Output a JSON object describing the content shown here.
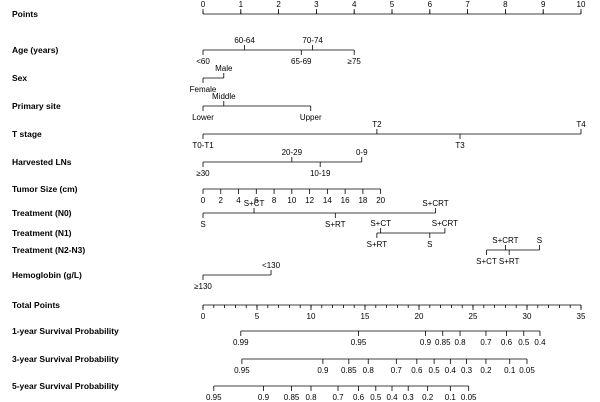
{
  "chart_data": {
    "type": "nomogram",
    "title": "",
    "rows": [
      {
        "label": "Points",
        "axis": {
          "min": 0,
          "max": 10
        },
        "ticks": [
          {
            "v": 0,
            "label": "0",
            "pos": "top"
          },
          {
            "v": 1,
            "label": "1",
            "pos": "top"
          },
          {
            "v": 2,
            "label": "2",
            "pos": "top"
          },
          {
            "v": 3,
            "label": "3",
            "pos": "top"
          },
          {
            "v": 4,
            "label": "4",
            "pos": "top"
          },
          {
            "v": 5,
            "label": "5",
            "pos": "top"
          },
          {
            "v": 6,
            "label": "6",
            "pos": "top"
          },
          {
            "v": 7,
            "label": "7",
            "pos": "top"
          },
          {
            "v": 8,
            "label": "8",
            "pos": "top"
          },
          {
            "v": 9,
            "label": "9",
            "pos": "top"
          },
          {
            "v": 10,
            "label": "10",
            "pos": "top"
          }
        ],
        "minor_ticks": 10
      },
      {
        "label": "Age (years)",
        "ticks": [
          {
            "v": 0,
            "label": "<60",
            "pos": "bottom"
          },
          {
            "v": 1.1,
            "label": "60-64",
            "pos": "top"
          },
          {
            "v": 2.6,
            "label": "65-69",
            "pos": "bottom"
          },
          {
            "v": 2.9,
            "label": "70-74",
            "pos": "top"
          },
          {
            "v": 4.0,
            "label": "≥75",
            "pos": "bottom"
          }
        ]
      },
      {
        "label": "Sex",
        "ticks": [
          {
            "v": 0,
            "label": "Female",
            "pos": "bottom"
          },
          {
            "v": 0.55,
            "label": "Male",
            "pos": "top"
          }
        ]
      },
      {
        "label": "Primary site",
        "ticks": [
          {
            "v": 0,
            "label": "Lower",
            "pos": "bottom"
          },
          {
            "v": 0.55,
            "label": "Middle",
            "pos": "top"
          },
          {
            "v": 2.85,
            "label": "Upper",
            "pos": "bottom"
          }
        ]
      },
      {
        "label": "T stage",
        "ticks": [
          {
            "v": 0,
            "label": "T0-T1",
            "pos": "bottom"
          },
          {
            "v": 4.6,
            "label": "T2",
            "pos": "top"
          },
          {
            "v": 6.8,
            "label": "T3",
            "pos": "bottom"
          },
          {
            "v": 10,
            "label": "T4",
            "pos": "top"
          }
        ]
      },
      {
        "label": "Harvested LNs",
        "ticks": [
          {
            "v": 0,
            "label": "≥30",
            "pos": "bottom"
          },
          {
            "v": 2.35,
            "label": "20-29",
            "pos": "top"
          },
          {
            "v": 3.1,
            "label": "10-19",
            "pos": "bottom"
          },
          {
            "v": 4.2,
            "label": "0-9",
            "pos": "top"
          }
        ]
      },
      {
        "label": "Tumor Size (cm)",
        "ticks": [
          {
            "v": 0,
            "label": "0",
            "pos": "bottom"
          },
          {
            "v": 0.47,
            "label": "2",
            "pos": "bottom"
          },
          {
            "v": 0.94,
            "label": "4",
            "pos": "bottom"
          },
          {
            "v": 1.41,
            "label": "6",
            "pos": "bottom"
          },
          {
            "v": 1.88,
            "label": "8",
            "pos": "bottom"
          },
          {
            "v": 2.35,
            "label": "10",
            "pos": "bottom"
          },
          {
            "v": 2.82,
            "label": "12",
            "pos": "bottom"
          },
          {
            "v": 3.29,
            "label": "14",
            "pos": "bottom"
          },
          {
            "v": 3.76,
            "label": "16",
            "pos": "bottom"
          },
          {
            "v": 4.23,
            "label": "18",
            "pos": "bottom"
          },
          {
            "v": 4.7,
            "label": "20",
            "pos": "bottom"
          }
        ]
      },
      {
        "label": "Treatment (N0)",
        "ticks": [
          {
            "v": 0,
            "label": "S",
            "pos": "bottom"
          },
          {
            "v": 1.35,
            "label": "S+CT",
            "pos": "top"
          },
          {
            "v": 3.5,
            "label": "S+RT",
            "pos": "bottom"
          },
          {
            "v": 6.15,
            "label": "S+CRT",
            "pos": "top"
          }
        ]
      },
      {
        "label": "Treatment (N1)",
        "ticks": [
          {
            "v": 4.6,
            "label": "S+RT",
            "pos": "bottom"
          },
          {
            "v": 4.7,
            "label": "S+CT",
            "pos": "top"
          },
          {
            "v": 6.0,
            "label": "S",
            "pos": "bottom"
          },
          {
            "v": 6.4,
            "label": "S+CRT",
            "pos": "top"
          }
        ]
      },
      {
        "label": "Treatment (N2-N3)",
        "ticks": [
          {
            "v": 7.5,
            "label": "S+CT",
            "pos": "bottom"
          },
          {
            "v": 8.0,
            "label": "S+CRT",
            "pos": "top"
          },
          {
            "v": 8.1,
            "label": "S+RT",
            "pos": "bottom"
          },
          {
            "v": 8.9,
            "label": "S",
            "pos": "top"
          }
        ]
      },
      {
        "label": "Hemoglobin (g/L)",
        "ticks": [
          {
            "v": 0,
            "label": "≥130",
            "pos": "bottom"
          },
          {
            "v": 1.8,
            "label": "<130",
            "pos": "top"
          }
        ]
      },
      {
        "label": "Total Points",
        "axis": {
          "min": 0,
          "max": 35
        },
        "ticks": [
          {
            "v": 0,
            "label": "0",
            "pos": "bottom"
          },
          {
            "v": 5,
            "label": "5",
            "pos": "bottom"
          },
          {
            "v": 10,
            "label": "10",
            "pos": "bottom"
          },
          {
            "v": 15,
            "label": "15",
            "pos": "bottom"
          },
          {
            "v": 20,
            "label": "20",
            "pos": "bottom"
          },
          {
            "v": 25,
            "label": "25",
            "pos": "bottom"
          },
          {
            "v": 30,
            "label": "30",
            "pos": "bottom"
          },
          {
            "v": 35,
            "label": "35",
            "pos": "bottom"
          }
        ],
        "minor_ticks": 35
      },
      {
        "label": "1-year Survival Probability",
        "axis": {
          "min": 0,
          "max": 35
        },
        "ticks": [
          {
            "v": 3.5,
            "label": "0.99",
            "pos": "bottom"
          },
          {
            "v": 14.4,
            "label": "0.95",
            "pos": "bottom"
          },
          {
            "v": 20.6,
            "label": "0.9",
            "pos": "bottom"
          },
          {
            "v": 22.2,
            "label": "0.85",
            "pos": "bottom"
          },
          {
            "v": 23.8,
            "label": "0.8",
            "pos": "bottom"
          },
          {
            "v": 26.2,
            "label": "0.7",
            "pos": "bottom"
          },
          {
            "v": 28.1,
            "label": "0.6",
            "pos": "bottom"
          },
          {
            "v": 29.7,
            "label": "0.5",
            "pos": "bottom"
          },
          {
            "v": 31.2,
            "label": "0.4",
            "pos": "bottom"
          }
        ]
      },
      {
        "label": "3-year Survival Probability",
        "axis": {
          "min": 0,
          "max": 35
        },
        "ticks": [
          {
            "v": 3.6,
            "label": "0.95",
            "pos": "bottom"
          },
          {
            "v": 11.1,
            "label": "0.9",
            "pos": "bottom"
          },
          {
            "v": 13.5,
            "label": "0.85",
            "pos": "bottom"
          },
          {
            "v": 15.3,
            "label": "0.8",
            "pos": "bottom"
          },
          {
            "v": 17.9,
            "label": "0.7",
            "pos": "bottom"
          },
          {
            "v": 19.8,
            "label": "0.6",
            "pos": "bottom"
          },
          {
            "v": 21.4,
            "label": "0.5",
            "pos": "bottom"
          },
          {
            "v": 22.9,
            "label": "0.4",
            "pos": "bottom"
          },
          {
            "v": 24.4,
            "label": "0.3",
            "pos": "bottom"
          },
          {
            "v": 26.2,
            "label": "0.2",
            "pos": "bottom"
          },
          {
            "v": 28.4,
            "label": "0.1",
            "pos": "bottom"
          },
          {
            "v": 30.0,
            "label": "0.05",
            "pos": "bottom"
          }
        ]
      },
      {
        "label": "5-year Survival Probability",
        "axis": {
          "min": 0,
          "max": 35
        },
        "ticks": [
          {
            "v": 1.0,
            "label": "0.95",
            "pos": "bottom"
          },
          {
            "v": 5.6,
            "label": "0.9",
            "pos": "bottom"
          },
          {
            "v": 8.2,
            "label": "0.85",
            "pos": "bottom"
          },
          {
            "v": 10.0,
            "label": "0.8",
            "pos": "bottom"
          },
          {
            "v": 12.5,
            "label": "0.7",
            "pos": "bottom"
          },
          {
            "v": 14.4,
            "label": "0.6",
            "pos": "bottom"
          },
          {
            "v": 16.0,
            "label": "0.5",
            "pos": "bottom"
          },
          {
            "v": 17.5,
            "label": "0.4",
            "pos": "bottom"
          },
          {
            "v": 19.0,
            "label": "0.3",
            "pos": "bottom"
          },
          {
            "v": 20.8,
            "label": "0.2",
            "pos": "bottom"
          },
          {
            "v": 22.9,
            "label": "0.1",
            "pos": "bottom"
          },
          {
            "v": 24.6,
            "label": "0.05",
            "pos": "bottom"
          }
        ]
      }
    ]
  }
}
